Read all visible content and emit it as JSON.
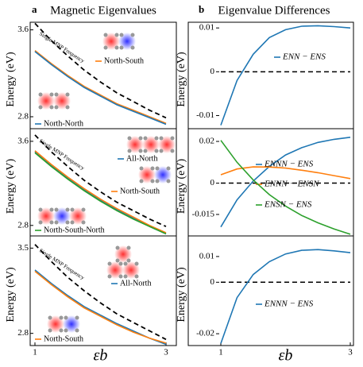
{
  "columns": [
    {
      "label": "a",
      "title": "Magnetic Eigenvalues"
    },
    {
      "label": "b",
      "title": "Eigenvalue Differences"
    }
  ],
  "chart_data": [
    {
      "type": "line",
      "ylabel": "Energy (eV)",
      "x": [
        1,
        1.25,
        1.5,
        1.75,
        2,
        2.25,
        2.5,
        2.75,
        3
      ],
      "xlim": [
        1,
        3
      ],
      "ylim": [
        2.69,
        3.67
      ],
      "yticks": [
        3.6,
        2.8
      ],
      "series": [
        {
          "name": "Single MNP Frequency",
          "color": "#000000",
          "dash": true,
          "values": [
            3.66,
            3.5,
            3.36,
            3.23,
            3.12,
            3.02,
            2.94,
            2.86,
            2.79
          ]
        },
        {
          "name": "North-South",
          "color": "#ff7f0e",
          "values": [
            3.41,
            3.29,
            3.18,
            3.08,
            3.0,
            2.92,
            2.86,
            2.8,
            2.74
          ]
        },
        {
          "name": "North-North",
          "color": "#1f77b4",
          "values": [
            3.4,
            3.28,
            3.17,
            3.07,
            2.99,
            2.91,
            2.85,
            2.79,
            2.73
          ]
        }
      ]
    },
    {
      "type": "line",
      "ylabel": "Energy (eV)",
      "x": [
        1,
        1.25,
        1.5,
        1.75,
        2,
        2.25,
        2.5,
        2.75,
        3
      ],
      "xlim": [
        1,
        3
      ],
      "ylim": [
        2.7,
        3.72
      ],
      "yticks": [
        3.6,
        2.8
      ],
      "series": [
        {
          "name": "Single MNP Frequency",
          "color": "#000000",
          "dash": true,
          "values": [
            3.66,
            3.5,
            3.36,
            3.23,
            3.12,
            3.02,
            2.94,
            2.86,
            2.79
          ]
        },
        {
          "name": "All-North",
          "color": "#1f77b4",
          "values": [
            3.5,
            3.37,
            3.25,
            3.14,
            3.04,
            2.95,
            2.87,
            2.79,
            2.72
          ]
        },
        {
          "name": "North-South",
          "color": "#ff7f0e",
          "values": [
            3.51,
            3.38,
            3.26,
            3.15,
            3.05,
            2.96,
            2.88,
            2.8,
            2.73
          ]
        },
        {
          "name": "North-South-North",
          "color": "#2ca02c",
          "values": [
            3.49,
            3.36,
            3.24,
            3.13,
            3.03,
            2.94,
            2.86,
            2.79,
            2.72
          ]
        }
      ]
    },
    {
      "type": "line",
      "ylabel": "Energy (eV)",
      "xlabel": "εb",
      "x": [
        1,
        1.25,
        1.5,
        1.75,
        2,
        2.25,
        2.5,
        2.75,
        3
      ],
      "xlim": [
        1,
        3
      ],
      "xticks": [
        1,
        3
      ],
      "ylim": [
        2.7,
        3.6
      ],
      "yticks": [
        3.5,
        2.8
      ],
      "series": [
        {
          "name": "Single MNP Frequency",
          "color": "#000000",
          "dash": true,
          "values": [
            3.53,
            3.39,
            3.26,
            3.15,
            3.05,
            2.96,
            2.89,
            2.82,
            2.75
          ]
        },
        {
          "name": "All-North",
          "color": "#1f77b4",
          "values": [
            3.32,
            3.21,
            3.11,
            3.02,
            2.95,
            2.88,
            2.82,
            2.76,
            2.71
          ]
        },
        {
          "name": "North-South",
          "color": "#ff7f0e",
          "values": [
            3.31,
            3.2,
            3.1,
            3.01,
            2.94,
            2.87,
            2.81,
            2.76,
            2.72
          ]
        }
      ]
    },
    {
      "type": "line",
      "ylabel": "Energy (eV)",
      "x": [
        1,
        1.25,
        1.5,
        1.75,
        2,
        2.25,
        2.5,
        2.75,
        3
      ],
      "xlim": [
        1,
        3
      ],
      "ylim": [
        -0.013,
        0.0113
      ],
      "yticks": [
        0.01,
        0,
        -0.01
      ],
      "zero_line": true,
      "series": [
        {
          "name": "ENN − ENS",
          "color": "#1f77b4",
          "values": [
            -0.0122,
            -0.002,
            0.004,
            0.0078,
            0.0096,
            0.0104,
            0.0105,
            0.0103,
            0.01
          ]
        }
      ]
    },
    {
      "type": "line",
      "ylabel": "Energy (eV)",
      "x": [
        1,
        1.25,
        1.5,
        1.75,
        2,
        2.25,
        2.5,
        2.75,
        3
      ],
      "xlim": [
        1,
        3
      ],
      "ylim": [
        -0.0253,
        0.0261
      ],
      "yticks": [
        0.02,
        0,
        -0.015
      ],
      "zero_line": true,
      "series": [
        {
          "name": "ENNN − ENS",
          "color": "#1f77b4",
          "values": [
            -0.021,
            -0.008,
            0.001,
            0.008,
            0.0135,
            0.017,
            0.0195,
            0.021,
            0.022
          ]
        },
        {
          "name": "ENNN − ENSN",
          "color": "#ff7f0e",
          "values": [
            0.004,
            0.0068,
            0.0078,
            0.0077,
            0.0072,
            0.0062,
            0.005,
            0.0036,
            0.0022
          ]
        },
        {
          "name": "ENSN − ENS",
          "color": "#2ca02c",
          "values": [
            0.0205,
            0.01,
            0.0015,
            -0.0055,
            -0.011,
            -0.0155,
            -0.019,
            -0.022,
            -0.0245
          ]
        }
      ]
    },
    {
      "type": "line",
      "ylabel": "Energy (eV)",
      "xlabel": "εb",
      "x": [
        1,
        1.25,
        1.5,
        1.75,
        2,
        2.25,
        2.5,
        2.75,
        3
      ],
      "xlim": [
        1,
        3
      ],
      "xticks": [
        1,
        3
      ],
      "ylim": [
        -0.0246,
        0.018
      ],
      "yticks": [
        0.01,
        0,
        -0.02
      ],
      "zero_line": true,
      "series": [
        {
          "name": "ENNN − ENS",
          "color": "#1f77b4",
          "values": [
            -0.0238,
            -0.006,
            0.003,
            0.008,
            0.011,
            0.0124,
            0.0127,
            0.0122,
            0.0115
          ]
        }
      ]
    }
  ]
}
